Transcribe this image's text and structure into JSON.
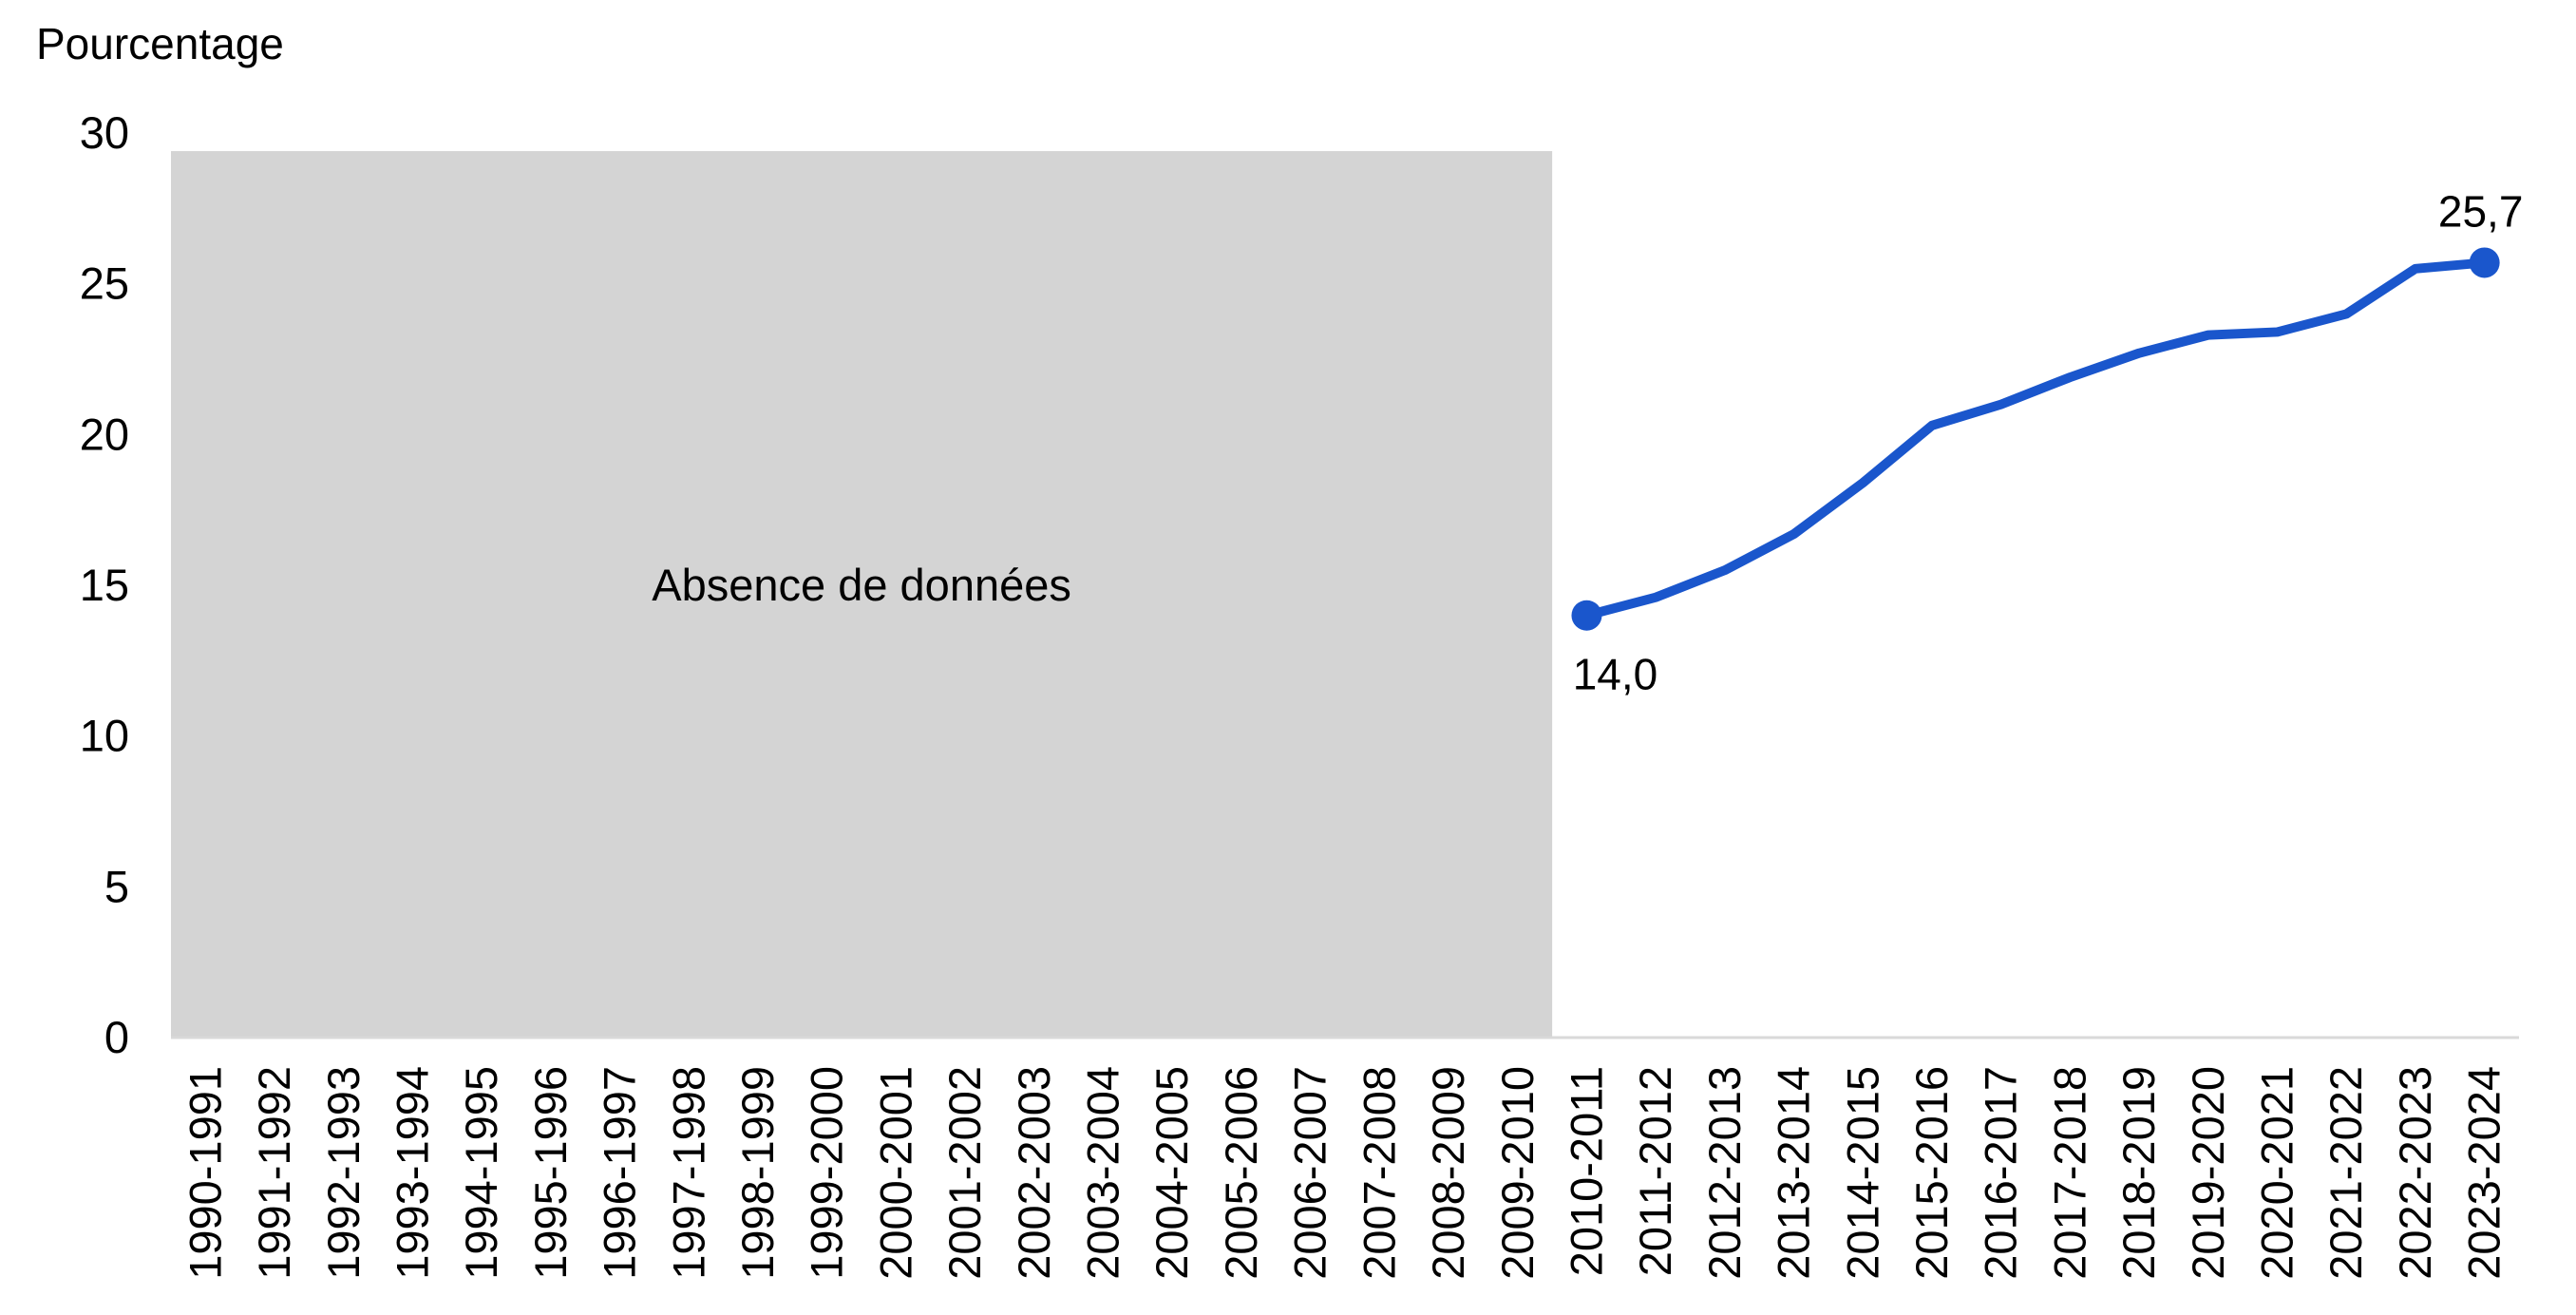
{
  "chart_data": {
    "type": "line",
    "title": "",
    "xlabel": "",
    "ylabel": "Pourcentage",
    "ylim": [
      0,
      30
    ],
    "yticks": [
      0,
      5,
      10,
      15,
      20,
      25,
      30
    ],
    "grid": false,
    "legend": "none",
    "categories": [
      "1990-1991",
      "1991-1992",
      "1992-1993",
      "1993-1994",
      "1994-1995",
      "1995-1996",
      "1996-1997",
      "1997-1998",
      "1998-1999",
      "1999-2000",
      "2000-2001",
      "2001-2002",
      "2002-2003",
      "2003-2004",
      "2004-2005",
      "2005-2006",
      "2006-2007",
      "2007-2008",
      "2008-2009",
      "2009-2010",
      "2010-2011",
      "2011-2012",
      "2012-2013",
      "2013-2014",
      "2014-2015",
      "2015-2016",
      "2016-2017",
      "2017-2018",
      "2018-2019",
      "2019-2020",
      "2020-2021",
      "2021-2022",
      "2022-2023",
      "2023-2024"
    ],
    "series": [
      {
        "color": "#1a56cc",
        "values": [
          null,
          null,
          null,
          null,
          null,
          null,
          null,
          null,
          null,
          null,
          null,
          null,
          null,
          null,
          null,
          null,
          null,
          null,
          null,
          null,
          14.0,
          14.6,
          15.5,
          16.7,
          18.4,
          20.3,
          21.0,
          21.9,
          22.7,
          23.3,
          23.4,
          24.0,
          25.5,
          25.7
        ]
      }
    ],
    "data_labels": [
      {
        "category": "2010-2011",
        "value": 14.0,
        "text": "14,0",
        "position": "below"
      },
      {
        "category": "2023-2024",
        "value": 25.7,
        "text": "25,7",
        "position": "above"
      }
    ],
    "no_data_region": {
      "from": "1990-1991",
      "to": "2009-2010",
      "label": "Absence de données",
      "color": "#d4d4d4"
    }
  }
}
